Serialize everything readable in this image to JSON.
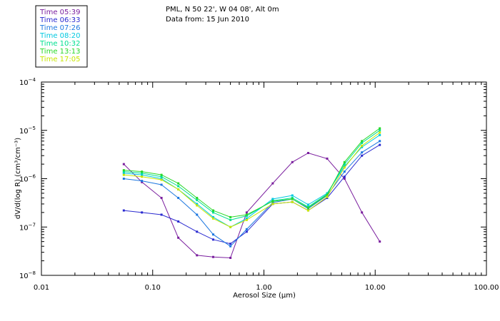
{
  "chart_data": {
    "type": "line",
    "title": "PML, N 50 22', W 04 08', Alt 0m",
    "subtitle": "Data from: 15 Jun 2010",
    "xlabel": "Aerosol Size (μm)",
    "ylabel": "dV/d(log R) (cm³/cm⁻³)",
    "xscale": "log",
    "yscale": "log",
    "xlim": [
      0.01,
      100
    ],
    "ylim": [
      1e-08,
      0.0001
    ],
    "xticks": [
      {
        "value": 0.01,
        "label": "0.01"
      },
      {
        "value": 0.1,
        "label": "0.10"
      },
      {
        "value": 1,
        "label": "1.00"
      },
      {
        "value": 10,
        "label": "10.00"
      },
      {
        "value": 100,
        "label": "100.00"
      }
    ],
    "yticks": [
      {
        "value": 1e-08,
        "base": "10",
        "exp": "−8"
      },
      {
        "value": 1e-07,
        "base": "10",
        "exp": "−7"
      },
      {
        "value": 1e-06,
        "base": "10",
        "exp": "−6"
      },
      {
        "value": 1e-05,
        "base": "10",
        "exp": "−5"
      },
      {
        "value": 0.0001,
        "base": "10",
        "exp": "−4"
      }
    ],
    "legend_position": "top-left outside",
    "x": [
      0.055,
      0.08,
      0.12,
      0.17,
      0.25,
      0.35,
      0.5,
      0.7,
      1.2,
      1.8,
      2.5,
      3.7,
      5.3,
      7.6,
      11.0
    ],
    "series": [
      {
        "name": "Time 05:39",
        "color": "#7a1e9e",
        "values": [
          2e-06,
          8.5e-07,
          4e-07,
          6e-08,
          2.6e-08,
          2.4e-08,
          2.3e-08,
          2e-07,
          8e-07,
          2.2e-06,
          3.4e-06,
          2.6e-06,
          1e-06,
          2e-07,
          5e-08
        ]
      },
      {
        "name": "Time 06:33",
        "color": "#2a2ad0",
        "values": [
          2.2e-07,
          2e-07,
          1.8e-07,
          1.3e-07,
          8e-08,
          5.5e-08,
          4.5e-08,
          8e-08,
          3e-07,
          3.3e-07,
          2.2e-07,
          4e-07,
          1.1e-06,
          3e-06,
          5e-06
        ]
      },
      {
        "name": "Time 07:26",
        "color": "#1e78e0",
        "values": [
          1e-06,
          9e-07,
          7.5e-07,
          4e-07,
          1.8e-07,
          7e-08,
          4e-08,
          9e-08,
          3.2e-07,
          3.8e-07,
          2.4e-07,
          4.5e-07,
          1.4e-06,
          3.5e-06,
          6e-06
        ]
      },
      {
        "name": "Time 08:20",
        "color": "#00c8e0",
        "values": [
          1.3e-06,
          1.2e-06,
          1e-06,
          6e-07,
          3e-07,
          1.6e-07,
          1e-07,
          1.5e-07,
          3.8e-07,
          4.5e-07,
          2.9e-07,
          5e-07,
          1.8e-06,
          4.5e-06,
          8e-06
        ]
      },
      {
        "name": "Time 10:32",
        "color": "#00e090",
        "values": [
          1.4e-06,
          1.3e-06,
          1.1e-06,
          7e-07,
          3.6e-07,
          2e-07,
          1.4e-07,
          1.7e-07,
          3.5e-07,
          4e-07,
          2.6e-07,
          4.8e-07,
          2e-06,
          5.5e-06,
          1e-05
        ]
      },
      {
        "name": "Time 13:13",
        "color": "#28d828",
        "values": [
          1.5e-06,
          1.4e-06,
          1.2e-06,
          8e-07,
          4e-07,
          2.2e-07,
          1.6e-07,
          1.8e-07,
          3.4e-07,
          3.8e-07,
          2.5e-07,
          4.6e-07,
          2.2e-06,
          6e-06,
          1.1e-05
        ]
      },
      {
        "name": "Time 17:05",
        "color": "#c8e600",
        "values": [
          1.2e-06,
          1.1e-06,
          9.5e-07,
          6e-07,
          2.8e-07,
          1.5e-07,
          1e-07,
          1.4e-07,
          3e-07,
          3.3e-07,
          2.2e-07,
          4.2e-07,
          1.7e-06,
          4.8e-06,
          9e-06
        ]
      }
    ]
  }
}
